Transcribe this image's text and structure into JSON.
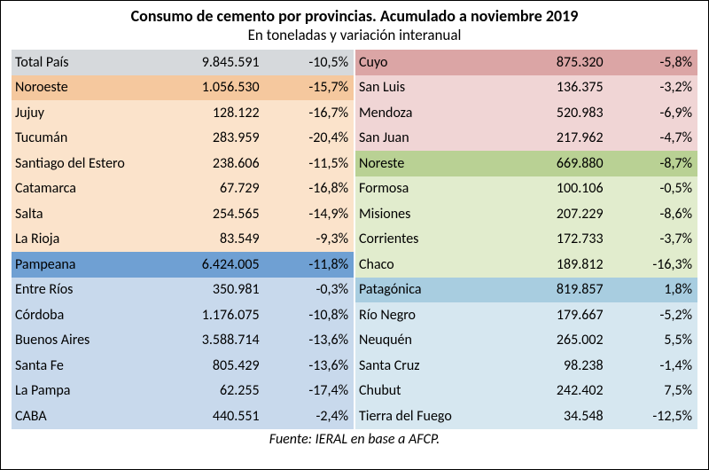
{
  "title": "Consumo de cemento por provincias. Acumulado a noviembre 2019",
  "subtitle": "En toneladas y variación interanual",
  "source": "Fuente: IERAL en base a AFCP.",
  "colors": {
    "total": "#d6d9dc",
    "noroeste": "#f5c89e",
    "noroeste_sub": "#fbe3cb",
    "pampeana": "#6fa0d3",
    "pampeana_sub": "#c8d9ec",
    "cuyo": "#dba5a5",
    "cuyo_sub": "#f0d5d5",
    "noreste": "#b9d194",
    "noreste_sub": "#e1eccd",
    "patagonica": "#a8cde0",
    "patagonica_sub": "#d6e7f0"
  },
  "left": [
    {
      "label": "Total País",
      "value": "9.845.591",
      "pct": "-10,5%",
      "color_key": "total",
      "region": true
    },
    {
      "label": "Noroeste",
      "value": "1.056.530",
      "pct": "-15,7%",
      "color_key": "noroeste",
      "region": true
    },
    {
      "label": "Jujuy",
      "value": "128.122",
      "pct": "-16,7%",
      "color_key": "noroeste_sub"
    },
    {
      "label": "Tucumán",
      "value": "283.959",
      "pct": "-20,4%",
      "color_key": "noroeste_sub"
    },
    {
      "label": "Santiago del Estero",
      "value": "238.606",
      "pct": "-11,5%",
      "color_key": "noroeste_sub"
    },
    {
      "label": "Catamarca",
      "value": "67.729",
      "pct": "-16,8%",
      "color_key": "noroeste_sub"
    },
    {
      "label": "Salta",
      "value": "254.565",
      "pct": "-14,9%",
      "color_key": "noroeste_sub"
    },
    {
      "label": "La Rioja",
      "value": "83.549",
      "pct": "-9,3%",
      "color_key": "noroeste_sub"
    },
    {
      "label": "Pampeana",
      "value": "6.424.005",
      "pct": "-11,8%",
      "color_key": "pampeana",
      "region": true
    },
    {
      "label": "Entre Ríos",
      "value": "350.981",
      "pct": "-0,3%",
      "color_key": "pampeana_sub"
    },
    {
      "label": "Córdoba",
      "value": "1.176.075",
      "pct": "-10,8%",
      "color_key": "pampeana_sub"
    },
    {
      "label": "Buenos Aires",
      "value": "3.588.714",
      "pct": "-13,6%",
      "color_key": "pampeana_sub"
    },
    {
      "label": "Santa Fe",
      "value": "805.429",
      "pct": "-13,6%",
      "color_key": "pampeana_sub"
    },
    {
      "label": "La Pampa",
      "value": "62.255",
      "pct": "-17,4%",
      "color_key": "pampeana_sub"
    },
    {
      "label": "CABA",
      "value": "440.551",
      "pct": "-2,4%",
      "color_key": "pampeana_sub"
    }
  ],
  "right": [
    {
      "label": "Cuyo",
      "value": "875.320",
      "pct": "-5,8%",
      "color_key": "cuyo",
      "region": true
    },
    {
      "label": "San Luis",
      "value": "136.375",
      "pct": "-3,2%",
      "color_key": "cuyo_sub"
    },
    {
      "label": "Mendoza",
      "value": "520.983",
      "pct": "-6,9%",
      "color_key": "cuyo_sub"
    },
    {
      "label": "San Juan",
      "value": "217.962",
      "pct": "-4,7%",
      "color_key": "cuyo_sub"
    },
    {
      "label": "Noreste",
      "value": "669.880",
      "pct": "-8,7%",
      "color_key": "noreste",
      "region": true
    },
    {
      "label": "Formosa",
      "value": "100.106",
      "pct": "-0,5%",
      "color_key": "noreste_sub"
    },
    {
      "label": "Misiones",
      "value": "207.229",
      "pct": "-8,6%",
      "color_key": "noreste_sub"
    },
    {
      "label": "Corrientes",
      "value": "172.733",
      "pct": "-3,7%",
      "color_key": "noreste_sub"
    },
    {
      "label": "Chaco",
      "value": "189.812",
      "pct": "-16,3%",
      "color_key": "noreste_sub"
    },
    {
      "label": "Patagónica",
      "value": "819.857",
      "pct": "1,8%",
      "color_key": "patagonica",
      "region": true
    },
    {
      "label": "Río Negro",
      "value": "179.667",
      "pct": "-5,2%",
      "color_key": "patagonica_sub"
    },
    {
      "label": "Neuquén",
      "value": "265.002",
      "pct": "5,5%",
      "color_key": "patagonica_sub"
    },
    {
      "label": "Santa Cruz",
      "value": "98.238",
      "pct": "-1,4%",
      "color_key": "patagonica_sub"
    },
    {
      "label": "Chubut",
      "value": "242.402",
      "pct": "7,5%",
      "color_key": "patagonica_sub"
    },
    {
      "label": "Tierra del Fuego",
      "value": "34.548",
      "pct": "-12,5%",
      "color_key": "patagonica_sub"
    }
  ]
}
